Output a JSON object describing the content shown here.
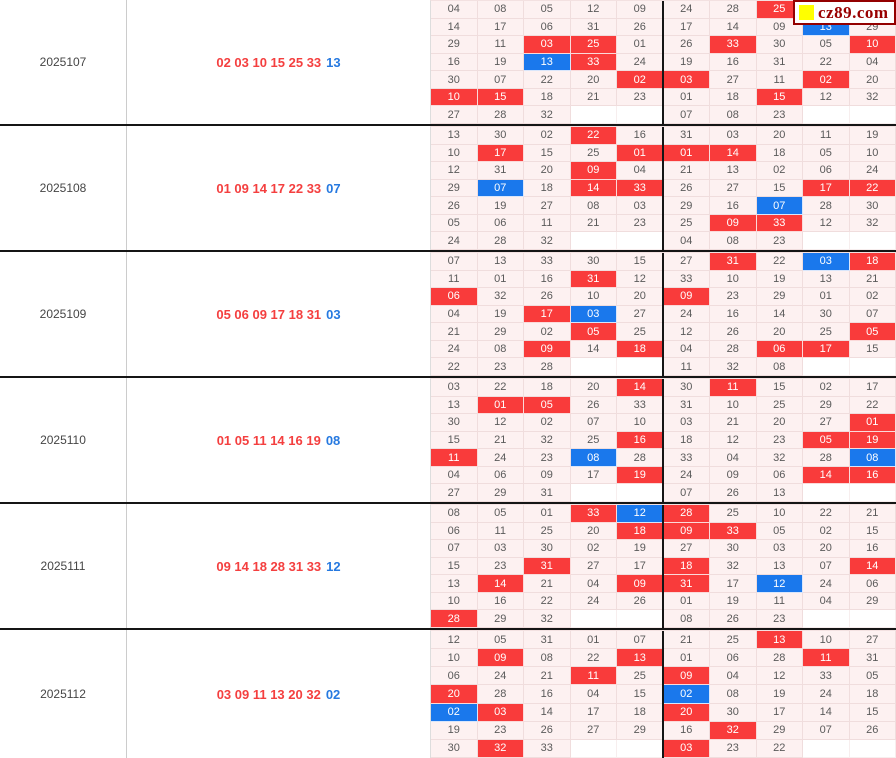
{
  "logo": {
    "text": "cz89.com",
    "square_icon": "yellow-square-icon",
    "square_color": "#ffff00",
    "text_color": "#990000",
    "border_color": "#930000"
  },
  "colors": {
    "highlight_red": "#f93b3b",
    "highlight_blue": "#1a78ec",
    "cell_background": "#fdf1f1",
    "main_numbers_text": "#f43f3f",
    "special_number_text": "#2679e0",
    "block_separator": "#151515"
  },
  "blocks": [
    {
      "period": "2025107",
      "main_numbers": "02 03 10 15 25 33",
      "special_number": "13",
      "grid": [
        [
          "04",
          "08",
          "05",
          "12",
          "09",
          "24",
          "28",
          "25:r",
          "",
          ""
        ],
        [
          "14",
          "17",
          "06",
          "31",
          "26",
          "17",
          "14",
          "09",
          "13:b",
          "29"
        ],
        [
          "29",
          "11",
          "03:r",
          "25:r",
          "01",
          "26",
          "33:r",
          "30",
          "05",
          "10:r"
        ],
        [
          "16",
          "19",
          "13:b",
          "33:r",
          "24",
          "19",
          "16",
          "31",
          "22",
          "04"
        ],
        [
          "30",
          "07",
          "22",
          "20",
          "02:r",
          "03:r",
          "27",
          "11",
          "02:r",
          "20"
        ],
        [
          "10:r",
          "15:r",
          "18",
          "21",
          "23",
          "01",
          "18",
          "15:r",
          "12",
          "32"
        ],
        [
          "27",
          "28",
          "32",
          "",
          "",
          "07",
          "08",
          "23",
          "",
          ""
        ]
      ]
    },
    {
      "period": "2025108",
      "main_numbers": "01 09 14 17 22 33",
      "special_number": "07",
      "grid": [
        [
          "13",
          "30",
          "02",
          "22:r",
          "16",
          "31",
          "03",
          "20",
          "11",
          "19"
        ],
        [
          "10",
          "17:r",
          "15",
          "25",
          "01:r",
          "01:r",
          "14:r",
          "18",
          "05",
          "10"
        ],
        [
          "12",
          "31",
          "20",
          "09:r",
          "04",
          "21",
          "13",
          "02",
          "06",
          "24"
        ],
        [
          "29",
          "07:b",
          "18",
          "14:r",
          "33:r",
          "26",
          "27",
          "15",
          "17:r",
          "22:r"
        ],
        [
          "26",
          "19",
          "27",
          "08",
          "03",
          "29",
          "16",
          "07:b",
          "28",
          "30"
        ],
        [
          "05",
          "06",
          "11",
          "21",
          "23",
          "25",
          "09:r",
          "33:r",
          "12",
          "32"
        ],
        [
          "24",
          "28",
          "32",
          "",
          "",
          "04",
          "08",
          "23",
          "",
          ""
        ]
      ]
    },
    {
      "period": "2025109",
      "main_numbers": "05 06 09 17 18 31",
      "special_number": "03",
      "grid": [
        [
          "07",
          "13",
          "33",
          "30",
          "15",
          "27",
          "31:r",
          "22",
          "03:b",
          "18:r"
        ],
        [
          "11",
          "01",
          "16",
          "31:r",
          "12",
          "33",
          "10",
          "19",
          "13",
          "21"
        ],
        [
          "06:r",
          "32",
          "26",
          "10",
          "20",
          "09:r",
          "23",
          "29",
          "01",
          "02"
        ],
        [
          "04",
          "19",
          "17:r",
          "03:b",
          "27",
          "24",
          "16",
          "14",
          "30",
          "07"
        ],
        [
          "21",
          "29",
          "02",
          "05:r",
          "25",
          "12",
          "26",
          "20",
          "25",
          "05:r"
        ],
        [
          "24",
          "08",
          "09:r",
          "14",
          "18:r",
          "04",
          "28",
          "06:r",
          "17:r",
          "15"
        ],
        [
          "22",
          "23",
          "28",
          "",
          "",
          "11",
          "32",
          "08",
          "",
          ""
        ]
      ]
    },
    {
      "period": "2025110",
      "main_numbers": "01 05 11 14 16 19",
      "special_number": "08",
      "grid": [
        [
          "03",
          "22",
          "18",
          "20",
          "14:r",
          "30",
          "11:r",
          "15",
          "02",
          "17"
        ],
        [
          "13",
          "01:r",
          "05:r",
          "26",
          "33",
          "31",
          "10",
          "25",
          "29",
          "22"
        ],
        [
          "30",
          "12",
          "02",
          "07",
          "10",
          "03",
          "21",
          "20",
          "27",
          "01:r"
        ],
        [
          "15",
          "21",
          "32",
          "25",
          "16:r",
          "18",
          "12",
          "23",
          "05:r",
          "19:r"
        ],
        [
          "11:r",
          "24",
          "23",
          "08:b",
          "28",
          "33",
          "04",
          "32",
          "28",
          "08:b"
        ],
        [
          "04",
          "06",
          "09",
          "17",
          "19:r",
          "24",
          "09",
          "06",
          "14:r",
          "16:r"
        ],
        [
          "27",
          "29",
          "31",
          "",
          "",
          "07",
          "26",
          "13",
          "",
          ""
        ]
      ]
    },
    {
      "period": "2025111",
      "main_numbers": "09 14 18 28 31 33",
      "special_number": "12",
      "grid": [
        [
          "08",
          "05",
          "01",
          "33:r",
          "12:b",
          "28:r",
          "25",
          "10",
          "22",
          "21"
        ],
        [
          "06",
          "11",
          "25",
          "20",
          "18:r",
          "09:r",
          "33:r",
          "05",
          "02",
          "15"
        ],
        [
          "07",
          "03",
          "30",
          "02",
          "19",
          "27",
          "30",
          "03",
          "20",
          "16"
        ],
        [
          "15",
          "23",
          "31:r",
          "27",
          "17",
          "18:r",
          "32",
          "13",
          "07",
          "14:r"
        ],
        [
          "13",
          "14:r",
          "21",
          "04",
          "09:r",
          "31:r",
          "17",
          "12:b",
          "24",
          "06"
        ],
        [
          "10",
          "16",
          "22",
          "24",
          "26",
          "01",
          "19",
          "11",
          "04",
          "29"
        ],
        [
          "28:r",
          "29",
          "32",
          "",
          "",
          "08",
          "26",
          "23",
          "",
          ""
        ]
      ]
    },
    {
      "period": "2025112",
      "main_numbers": "03 09 11 13 20 32",
      "special_number": "02",
      "grid": [
        [
          "12",
          "05",
          "31",
          "01",
          "07",
          "21",
          "25",
          "13:r",
          "10",
          "27"
        ],
        [
          "10",
          "09:r",
          "08",
          "22",
          "13:r",
          "01",
          "06",
          "28",
          "11:r",
          "31"
        ],
        [
          "06",
          "24",
          "21",
          "11:r",
          "25",
          "09:r",
          "04",
          "12",
          "33",
          "05"
        ],
        [
          "20:r",
          "28",
          "16",
          "04",
          "15",
          "02:b",
          "08",
          "19",
          "24",
          "18"
        ],
        [
          "02:b",
          "03:r",
          "14",
          "17",
          "18",
          "20:r",
          "30",
          "17",
          "14",
          "15"
        ],
        [
          "19",
          "23",
          "26",
          "27",
          "29",
          "16",
          "32:r",
          "29",
          "07",
          "26"
        ],
        [
          "30",
          "32:r",
          "33",
          "",
          "",
          "03:r",
          "23",
          "22",
          "",
          ""
        ]
      ]
    }
  ]
}
